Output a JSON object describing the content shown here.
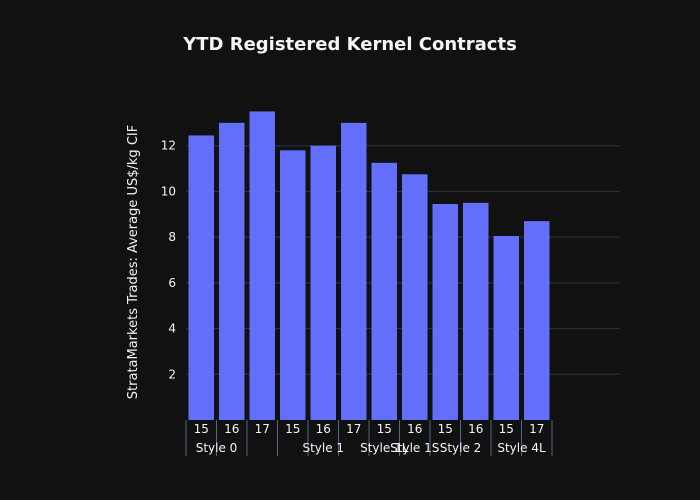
{
  "chart_data": {
    "type": "bar",
    "title": "YTD Registered Kernel Contracts",
    "ylabel": "StrataMarkets Trades: Average US$/kg CIF",
    "xlabel": "",
    "ylim": [
      0,
      14
    ],
    "yticks": [
      2,
      4,
      6,
      8,
      10,
      12
    ],
    "grid": true,
    "bar_color": "#636efa",
    "categories": [
      "15",
      "16",
      "17",
      "15",
      "16",
      "17",
      "15",
      "16",
      "15",
      "16",
      "15",
      "17"
    ],
    "values": [
      12.45,
      13.0,
      13.5,
      11.8,
      12.0,
      13.0,
      11.25,
      10.75,
      9.45,
      9.5,
      8.05,
      8.7
    ],
    "groups": [
      {
        "label": "Style 0",
        "start": 0,
        "end": 1
      },
      {
        "label": "Style 1",
        "start": 3,
        "end": 5
      },
      {
        "label": "Style 1L",
        "start": 6,
        "end": 6
      },
      {
        "label": "Style 1S",
        "start": 7,
        "end": 7
      },
      {
        "label": "Style 2",
        "start": 8,
        "end": 9
      },
      {
        "label": "Style 4L",
        "start": 10,
        "end": 11
      }
    ]
  },
  "colors": {
    "background": "#111111",
    "text": "#f2f5fa",
    "grid": "#283442",
    "divider": "#506784"
  }
}
